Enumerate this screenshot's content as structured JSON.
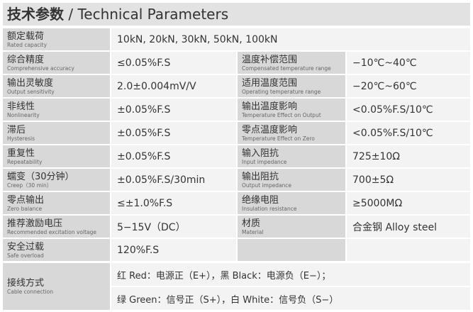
{
  "title": {
    "cn": "技术参数",
    "en": " / Technical Parameters"
  },
  "rows": [
    {
      "cn": "额定载荷",
      "en": "Rated capacity",
      "value": "10kN, 20kN, 30kN, 50kN, 100kN"
    },
    {
      "cn": "综合精度",
      "en": "Comprehensive accuracy",
      "value": "≤0.05%F.S",
      "cn2": "温度补偿范围",
      "en2": "Compensated temperature range",
      "value2": "−10℃~40℃"
    },
    {
      "cn": "输出灵敏度",
      "en": "Output sensitivity",
      "value": "2.0±0.004mV/V",
      "cn2": "适用温度范围",
      "en2": "Operating temperature range",
      "value2": "−20℃~60℃"
    },
    {
      "cn": "非线性",
      "en": "Nonlinearity",
      "value": "±0.05%F.S",
      "cn2": "输出温度影响",
      "en2": "Temperature Effect on Output",
      "value2": "<0.05%F.S/10℃"
    },
    {
      "cn": "滞后",
      "en": "Hysteresis",
      "value": "±0.05%F.S",
      "cn2": "零点温度影响",
      "en2": "Temperature Effect on Zero",
      "value2": "<0.05%F.S/10℃"
    },
    {
      "cn": "重复性",
      "en": "Repeatability",
      "value": "±0.05%F.S",
      "cn2": "输入阻抗",
      "en2": "Input impedance",
      "value2": "725±10Ω"
    },
    {
      "cn": "蠕变（30分钟）",
      "en": "Creep（30 min）",
      "value": "±0.05%F.S/30min",
      "cn2": "输出阻抗",
      "en2": "Output impedance",
      "value2": "700±5Ω"
    },
    {
      "cn": "零点输出",
      "en": "Zero balance",
      "value": "≤±1.0%F.S",
      "cn2": "绝缘电阻",
      "en2": "Insulation resistance",
      "value2": "≥5000MΩ"
    },
    {
      "cn": "推荐激励电压",
      "en": "Recommended excitation voltage",
      "value": "5−15V（DC）",
      "cn2": "材质",
      "en2": "Material",
      "value2": "合金钢 Alloy steel"
    },
    {
      "cn": "安全过载",
      "en": "Safe overload",
      "value": "120%F.S",
      "cn2": "",
      "en2": "",
      "value2": ""
    }
  ],
  "cable": {
    "cn": "接线方式",
    "en": "Cable connection",
    "line1": "红 Red：电源正（E+），黑 Black：电源负（E−）；",
    "line2": "绿 Green：信号正（S+），白 White：信号负（S−）"
  }
}
